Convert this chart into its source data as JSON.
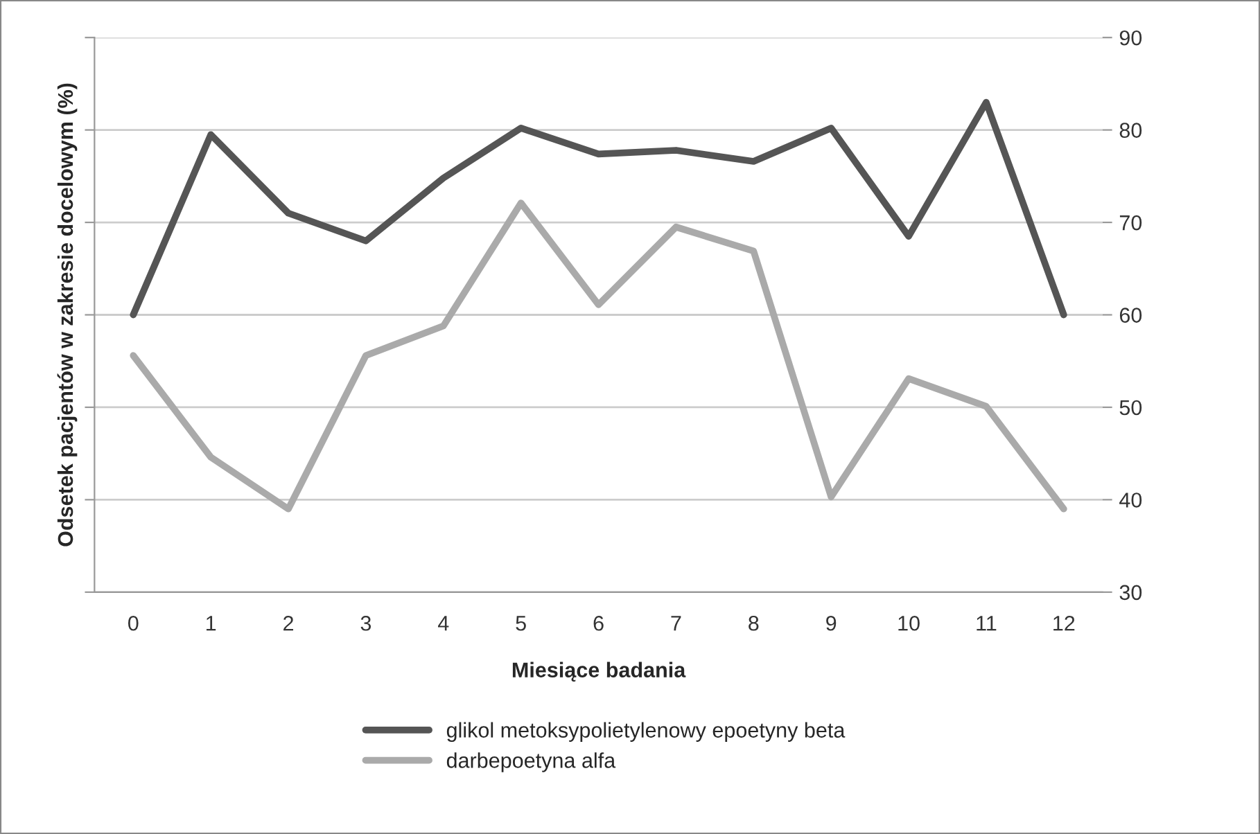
{
  "chart_data": {
    "type": "line",
    "xlabel": "Miesiące badania",
    "ylabel": "Odsetek pacjentów w zakresie docelowym (%)",
    "categories": [
      "0",
      "1",
      "2",
      "3",
      "4",
      "5",
      "6",
      "7",
      "8",
      "9",
      "10",
      "11",
      "12"
    ],
    "series": [
      {
        "name": "glikol metoksypolietylenowy epoetyny beta",
        "color": "#555555",
        "values": [
          60,
          79.5,
          71,
          68,
          74.8,
          80.2,
          77.4,
          77.8,
          76.6,
          80.2,
          68.5,
          83,
          60
        ]
      },
      {
        "name": "darbepoetyna alfa",
        "color": "#aaaaaa",
        "values": [
          55.6,
          44.6,
          39,
          55.6,
          58.8,
          72.1,
          61.1,
          69.5,
          66.9,
          40.3,
          53.1,
          50.1,
          39
        ]
      }
    ],
    "ylim": [
      30,
      90
    ],
    "yticks": [
      30,
      40,
      50,
      60,
      70,
      80,
      90
    ],
    "grid": "y",
    "legend": "bottom",
    "marker": "none",
    "line_style": "solid"
  }
}
